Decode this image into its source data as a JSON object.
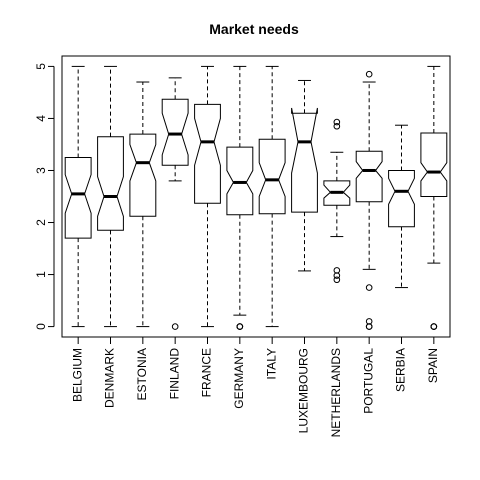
{
  "chart_data": {
    "type": "boxplot",
    "notched": true,
    "title": "Market needs",
    "xlabel": "",
    "ylabel": "",
    "ylim": [
      -0.2,
      5.2
    ],
    "yticks": [
      0,
      1,
      2,
      3,
      4,
      5
    ],
    "ytick_labels": [
      "0",
      "1",
      "2",
      "3",
      "4",
      "5"
    ],
    "grid": false,
    "legend": "none",
    "categories": [
      "BELGIUM",
      "DENMARK",
      "ESTONIA",
      "FINLAND",
      "FRANCE",
      "GERMANY",
      "ITALY",
      "LUXEMBOURG",
      "NETHERLANDS",
      "PORTUGAL",
      "SERBIA",
      "SPAIN"
    ],
    "boxes": [
      {
        "category": "BELGIUM",
        "min": 0,
        "q1": 1.7,
        "median": 2.55,
        "q3": 3.25,
        "max": 5,
        "notch_low": 2.18,
        "notch_high": 2.92,
        "outliers": []
      },
      {
        "category": "DENMARK",
        "min": 0,
        "q1": 1.85,
        "median": 2.5,
        "q3": 3.65,
        "max": 5,
        "notch_low": 2.12,
        "notch_high": 2.88,
        "outliers": []
      },
      {
        "category": "ESTONIA",
        "min": 0,
        "q1": 2.12,
        "median": 3.15,
        "q3": 3.7,
        "max": 4.7,
        "notch_low": 2.8,
        "notch_high": 3.5,
        "outliers": []
      },
      {
        "category": "FINLAND",
        "min": 2.8,
        "q1": 3.1,
        "median": 3.7,
        "q3": 4.37,
        "max": 4.78,
        "notch_low": 3.3,
        "notch_high": 4.1,
        "outliers": [
          0
        ]
      },
      {
        "category": "FRANCE",
        "min": 0,
        "q1": 2.37,
        "median": 3.55,
        "q3": 4.27,
        "max": 5,
        "notch_low": 3.1,
        "notch_high": 4.0,
        "outliers": []
      },
      {
        "category": "GERMANY",
        "min": 0.22,
        "q1": 2.15,
        "median": 2.77,
        "q3": 3.45,
        "max": 5,
        "notch_low": 2.55,
        "notch_high": 3.0,
        "outliers": [
          0,
          0,
          0
        ]
      },
      {
        "category": "ITALY",
        "min": 0,
        "q1": 2.17,
        "median": 2.82,
        "q3": 3.6,
        "max": 5,
        "notch_low": 2.5,
        "notch_high": 3.15,
        "outliers": []
      },
      {
        "category": "LUXEMBOURG",
        "min": 1.07,
        "q1": 2.2,
        "median": 3.55,
        "q3": 4.1,
        "max": 4.73,
        "notch_low": 2.95,
        "notch_high": 4.2,
        "outliers": []
      },
      {
        "category": "NETHERLANDS",
        "min": 1.73,
        "q1": 2.33,
        "median": 2.58,
        "q3": 2.8,
        "max": 3.35,
        "notch_low": 2.47,
        "notch_high": 2.72,
        "outliers": [
          3.93,
          3.85,
          1.08,
          0.98,
          0.9
        ]
      },
      {
        "category": "PORTUGAL",
        "min": 1.1,
        "q1": 2.4,
        "median": 3.0,
        "q3": 3.37,
        "max": 4.7,
        "notch_low": 2.85,
        "notch_high": 3.17,
        "outliers": [
          4.85,
          0.75,
          0.1,
          0,
          0
        ]
      },
      {
        "category": "SERBIA",
        "min": 0.75,
        "q1": 1.92,
        "median": 2.6,
        "q3": 3.0,
        "max": 3.87,
        "notch_low": 2.35,
        "notch_high": 2.85,
        "outliers": []
      },
      {
        "category": "SPAIN",
        "min": 1.22,
        "q1": 2.5,
        "median": 2.97,
        "q3": 3.72,
        "max": 5,
        "notch_low": 2.8,
        "notch_high": 3.15,
        "outliers": [
          0,
          0,
          0
        ]
      }
    ]
  }
}
